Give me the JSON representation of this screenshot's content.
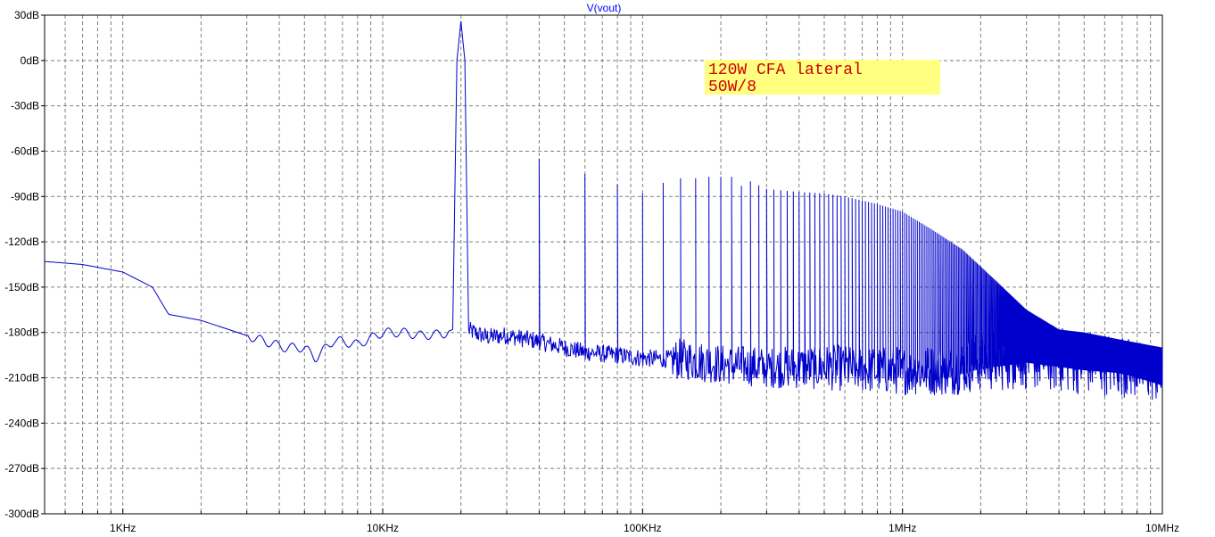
{
  "chart_data": {
    "type": "line",
    "title": "V(vout)",
    "xscale": "log",
    "xlim": [
      500,
      10000000
    ],
    "ylim": [
      -300,
      30
    ],
    "xticks": [
      {
        "value": 1000,
        "label": "1KHz"
      },
      {
        "value": 10000,
        "label": "10KHz"
      },
      {
        "value": 100000,
        "label": "100KHz"
      },
      {
        "value": 1000000,
        "label": "1MHz"
      },
      {
        "value": 10000000,
        "label": "10MHz"
      }
    ],
    "yticks": [
      {
        "value": 30,
        "label": "30dB"
      },
      {
        "value": 0,
        "label": "0dB"
      },
      {
        "value": -30,
        "label": "-30dB"
      },
      {
        "value": -60,
        "label": "-60dB"
      },
      {
        "value": -90,
        "label": "-90dB"
      },
      {
        "value": -120,
        "label": "-120dB"
      },
      {
        "value": -150,
        "label": "-150dB"
      },
      {
        "value": -180,
        "label": "-180dB"
      },
      {
        "value": -210,
        "label": "-210dB"
      },
      {
        "value": -240,
        "label": "-240dB"
      },
      {
        "value": -270,
        "label": "-270dB"
      },
      {
        "value": -300,
        "label": "-300dB"
      }
    ],
    "grid": true,
    "annotation": {
      "lines": [
        "120W CFA lateral",
        "50W/8"
      ],
      "background": "#ffff80",
      "color": "#cc0000"
    },
    "series": [
      {
        "color": "#0000cc",
        "fundamental_hz": 20000,
        "x": [
          500,
          700,
          1000,
          1300,
          1500,
          2000,
          3000,
          4200,
          5000,
          5500,
          6500,
          8000,
          10000,
          12000,
          14000,
          17000,
          19000,
          20000,
          21000,
          25000,
          30000,
          40000,
          50000,
          60000,
          80000,
          100000,
          150000,
          200000,
          300000,
          500000,
          800000,
          1000000,
          1500000,
          2000000,
          3000000,
          5000000,
          7000000,
          10000000
        ],
        "y": [
          -133,
          -135,
          -140,
          -150,
          -168,
          -172,
          -182,
          -190,
          -190,
          -197,
          -185,
          -188,
          -180,
          -180,
          -182,
          -181,
          -178,
          26,
          -178,
          -183,
          -182,
          -186,
          -190,
          -193,
          -195,
          -197,
          -198,
          -201,
          -203,
          -203,
          -205,
          -205,
          -205,
          -199,
          -195,
          -200,
          -202,
          -210
        ],
        "harmonics": [
          {
            "freq": 40000,
            "level": -65
          },
          {
            "freq": 60000,
            "level": -75
          },
          {
            "freq": 80000,
            "level": -82
          },
          {
            "freq": 100000,
            "level": -88
          },
          {
            "freq": 120000,
            "level": -81
          },
          {
            "freq": 140000,
            "level": -78
          },
          {
            "freq": 160000,
            "level": -78
          },
          {
            "freq": 180000,
            "level": -77
          },
          {
            "freq": 200000,
            "level": -77
          },
          {
            "freq": 220000,
            "level": -77
          },
          {
            "freq": 240000,
            "level": -83
          },
          {
            "freq": 260000,
            "level": -80
          },
          {
            "freq": 300000,
            "level": -85
          },
          {
            "freq": 400000,
            "level": -87
          },
          {
            "freq": 500000,
            "level": -88
          },
          {
            "freq": 600000,
            "level": -90
          },
          {
            "freq": 800000,
            "level": -95
          },
          {
            "freq": 1000000,
            "level": -100
          },
          {
            "freq": 1300000,
            "level": -112
          },
          {
            "freq": 1700000,
            "level": -125
          },
          {
            "freq": 2200000,
            "level": -143
          },
          {
            "freq": 3000000,
            "level": -165
          },
          {
            "freq": 4000000,
            "level": -178
          },
          {
            "freq": 5000000,
            "level": -180
          },
          {
            "freq": 7000000,
            "level": -185
          },
          {
            "freq": 10000000,
            "level": -190
          }
        ],
        "noise_floor": {
          "x": [
            130000,
            1000000,
            10000000
          ],
          "bottom": [
            -225,
            -238,
            -245
          ]
        }
      }
    ]
  }
}
